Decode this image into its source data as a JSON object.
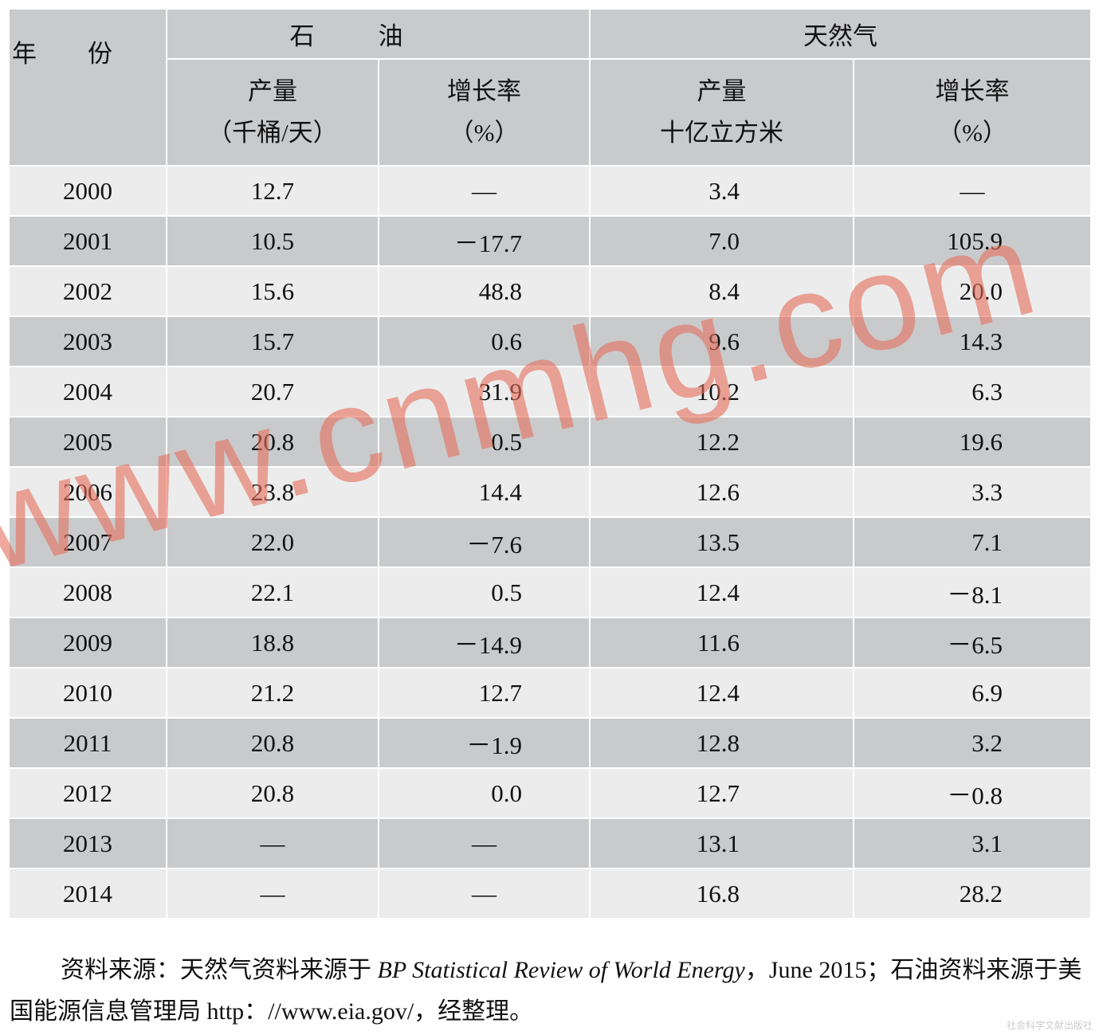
{
  "table": {
    "header": {
      "year": "年份",
      "oil": "石油",
      "gas": "天然气",
      "oil_output": [
        "产量",
        "（千桶/天）"
      ],
      "oil_growth": [
        "增长率",
        "（%）"
      ],
      "gas_output": [
        "产量",
        "十亿立方米"
      ],
      "gas_growth": [
        "增长率",
        "（%）"
      ]
    },
    "rows": [
      [
        "2000",
        "12.7",
        "—",
        "3.4",
        "—"
      ],
      [
        "2001",
        "10.5",
        "－17.7",
        "7.0",
        "105.9"
      ],
      [
        "2002",
        "15.6",
        "48.8",
        "8.4",
        "20.0"
      ],
      [
        "2003",
        "15.7",
        "0.6",
        "9.6",
        "14.3"
      ],
      [
        "2004",
        "20.7",
        "31.9",
        "10.2",
        "6.3"
      ],
      [
        "2005",
        "20.8",
        "0.5",
        "12.2",
        "19.6"
      ],
      [
        "2006",
        "23.8",
        "14.4",
        "12.6",
        "3.3"
      ],
      [
        "2007",
        "22.0",
        "－7.6",
        "13.5",
        "7.1"
      ],
      [
        "2008",
        "22.1",
        "0.5",
        "12.4",
        "－8.1"
      ],
      [
        "2009",
        "18.8",
        "－14.9",
        "11.6",
        "－6.5"
      ],
      [
        "2010",
        "21.2",
        "12.7",
        "12.4",
        "6.9"
      ],
      [
        "2011",
        "20.8",
        "－1.9",
        "12.8",
        "3.2"
      ],
      [
        "2012",
        "20.8",
        "0.0",
        "12.7",
        "－0.8"
      ],
      [
        "2013",
        "—",
        "—",
        "13.1",
        "3.1"
      ],
      [
        "2014",
        "—",
        "—",
        "16.8",
        "28.2"
      ]
    ]
  },
  "source": {
    "prefix": "资料来源：天然气资料来源于 ",
    "title": "BP Statistical Review of World Energy",
    "suffix": "，June 2015；石油资料来源于美国能源信息管理局 http：//www.eia.gov/，经整理。"
  },
  "watermark": "www.cnmhg.com",
  "publisher": "社会科学文献出版社"
}
